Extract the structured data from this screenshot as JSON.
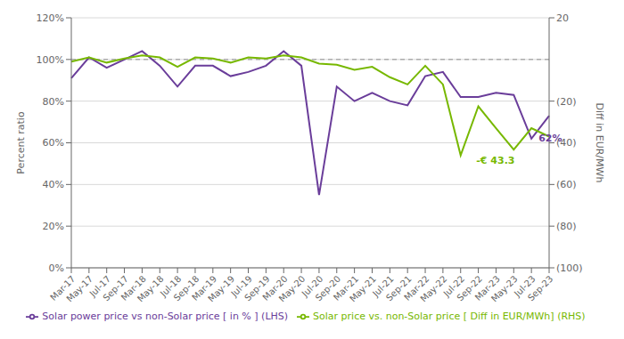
{
  "chart_data": {
    "type": "line",
    "ylabel": "Percent ratio",
    "y2label": "Diff in EUR/MWh",
    "categories": [
      "Mar-17",
      "May-17",
      "Jul-17",
      "Sep-17",
      "Mar-18",
      "May-18",
      "Jul-18",
      "Sep-18",
      "Mar-19",
      "May-19",
      "Jul-19",
      "Sep-19",
      "Mar-20",
      "May-20",
      "Jul-20",
      "Sep-20",
      "Mar-21",
      "May-21",
      "Jul-21",
      "Sep-21",
      "Mar-22",
      "May-22",
      "Jul-22",
      "Sep-22",
      "Mar-23",
      "May-23",
      "Jul-23",
      "Sep-23"
    ],
    "series": [
      {
        "name": "Solar power price vs non-Solar price [ in % ] (LHS)",
        "color": "#6a3d9a",
        "axis": "y",
        "values": [
          0.91,
          1.01,
          0.96,
          1.0,
          1.04,
          0.97,
          0.87,
          0.97,
          0.97,
          0.92,
          0.94,
          0.97,
          1.04,
          0.97,
          0.35,
          0.87,
          0.8,
          0.84,
          0.8,
          0.78,
          0.92,
          0.94,
          0.82,
          0.82,
          0.84,
          0.83,
          0.62,
          0.73
        ]
      },
      {
        "name": "Solar price vs. non-Solar price [ Diff in EUR/MWh] (RHS)",
        "color": "#77b800",
        "axis": "y2",
        "values": [
          -1.0,
          1.0,
          -1.5,
          0.5,
          2.0,
          1.0,
          -3.5,
          1.0,
          0.5,
          -1.5,
          1.0,
          0.5,
          2.0,
          1.0,
          -2.0,
          -2.5,
          -5.0,
          -3.5,
          -8.5,
          -12.0,
          -3.0,
          -12.0,
          -46.0,
          -22.5,
          -33.0,
          -43.3,
          -33.0,
          -37.0
        ]
      }
    ],
    "ylim": [
      0.0,
      1.2
    ],
    "yticks": [
      {
        "value": 0.0,
        "label": "0%"
      },
      {
        "value": 0.2,
        "label": "20%"
      },
      {
        "value": 0.4,
        "label": "40%"
      },
      {
        "value": 0.6,
        "label": "60%"
      },
      {
        "value": 0.8,
        "label": "80%"
      },
      {
        "value": 1.0,
        "label": "100%"
      },
      {
        "value": 1.2,
        "label": "120%"
      }
    ],
    "y2lim": [
      -100,
      20
    ],
    "y2ticks": [
      20,
      {
        "value": -20,
        "label": "(20)"
      },
      {
        "value": -40,
        "label": "(40)"
      },
      {
        "value": -60,
        "label": "(60)"
      },
      {
        "value": -80,
        "label": "(80)"
      },
      {
        "value": -100,
        "label": "(100)"
      }
    ],
    "reference_lines": [
      {
        "value": 1.0,
        "axis": "y",
        "color": "#909090",
        "line_style": "dashed"
      }
    ],
    "annotations": [
      {
        "text": "62%",
        "series": "Solar power price vs non-Solar price [ in % ] (LHS)",
        "category": "Jul-23"
      },
      {
        "text": "-€ 43.3",
        "series": "Solar price vs. non-Solar price [ Diff in EUR/MWh] (RHS)",
        "category": "May-23"
      }
    ],
    "grid": true,
    "legend": "bottom"
  }
}
